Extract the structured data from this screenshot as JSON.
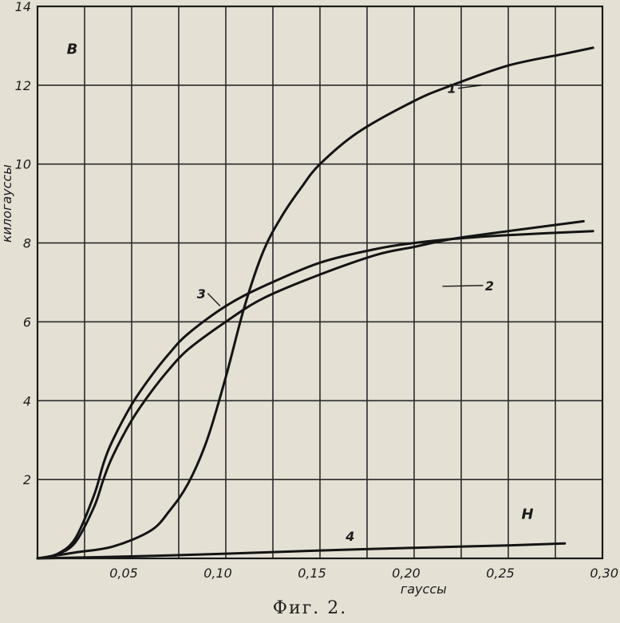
{
  "chart_data": {
    "type": "line",
    "title": "",
    "xlabel": "гауссы",
    "ylabel": "килогауссы",
    "x_axis_letter": "H",
    "y_axis_letter": "B",
    "xlim": [
      0,
      0.3
    ],
    "ylim": [
      0,
      14
    ],
    "grid": true,
    "x_ticks": [
      {
        "value": 0.05,
        "label": "0,05"
      },
      {
        "value": 0.1,
        "label": "0,10"
      },
      {
        "value": 0.15,
        "label": "0,15"
      },
      {
        "value": 0.2,
        "label": "0,20"
      },
      {
        "value": 0.25,
        "label": "0,25"
      },
      {
        "value": 0.3,
        "label": "0,30"
      }
    ],
    "y_ticks": [
      {
        "value": 2,
        "label": "2"
      },
      {
        "value": 4,
        "label": "4"
      },
      {
        "value": 6,
        "label": "6"
      },
      {
        "value": 8,
        "label": "8"
      },
      {
        "value": 10,
        "label": "10"
      },
      {
        "value": 12,
        "label": "12"
      },
      {
        "value": 14,
        "label": "14"
      }
    ],
    "series": [
      {
        "name": "1",
        "x": [
          0,
          0.02,
          0.04,
          0.06,
          0.07,
          0.08,
          0.09,
          0.1,
          0.11,
          0.12,
          0.13,
          0.14,
          0.15,
          0.17,
          0.2,
          0.22,
          0.25,
          0.28,
          0.295
        ],
        "y": [
          0,
          0.15,
          0.3,
          0.7,
          1.2,
          1.9,
          3.0,
          4.6,
          6.4,
          7.8,
          8.7,
          9.4,
          10.0,
          10.8,
          11.6,
          12.0,
          12.5,
          12.8,
          12.95
        ]
      },
      {
        "name": "2",
        "x": [
          0,
          0.01,
          0.02,
          0.03,
          0.035,
          0.04,
          0.05,
          0.06,
          0.07,
          0.08,
          0.1,
          0.12,
          0.15,
          0.18,
          0.2,
          0.22,
          0.25,
          0.29
        ],
        "y": [
          0,
          0.1,
          0.4,
          1.3,
          2.0,
          2.6,
          3.5,
          4.2,
          4.8,
          5.3,
          6.0,
          6.6,
          7.2,
          7.7,
          7.9,
          8.1,
          8.3,
          8.55
        ]
      },
      {
        "name": "3",
        "x": [
          0,
          0.01,
          0.02,
          0.03,
          0.035,
          0.04,
          0.05,
          0.06,
          0.07,
          0.08,
          0.1,
          0.12,
          0.15,
          0.18,
          0.2,
          0.22,
          0.25,
          0.295
        ],
        "y": [
          0,
          0.1,
          0.5,
          1.6,
          2.4,
          3.0,
          3.9,
          4.6,
          5.2,
          5.7,
          6.4,
          6.9,
          7.5,
          7.85,
          8.0,
          8.1,
          8.2,
          8.3
        ]
      },
      {
        "name": "4",
        "x": [
          0,
          0.05,
          0.1,
          0.15,
          0.2,
          0.25,
          0.28
        ],
        "y": [
          0,
          0.05,
          0.12,
          0.2,
          0.27,
          0.33,
          0.38
        ]
      }
    ],
    "curve_labels": [
      {
        "series": "1",
        "text": "1",
        "at_x": 0.22,
        "at_y": 11.8,
        "pointer_to_x": 0.236,
        "pointer_to_y": 12.0
      },
      {
        "series": "2",
        "text": "2",
        "at_x": 0.24,
        "at_y": 6.8,
        "pointer_to_x": 0.215,
        "pointer_to_y": 6.9
      },
      {
        "series": "3",
        "text": "3",
        "at_x": 0.087,
        "at_y": 6.6,
        "pointer_to_x": 0.097,
        "pointer_to_y": 6.4
      },
      {
        "series": "4",
        "text": "4",
        "at_x": 0.166,
        "at_y": 0.45,
        "pointer_to_x": null,
        "pointer_to_y": null
      }
    ],
    "caption": "Фиг. 2."
  }
}
